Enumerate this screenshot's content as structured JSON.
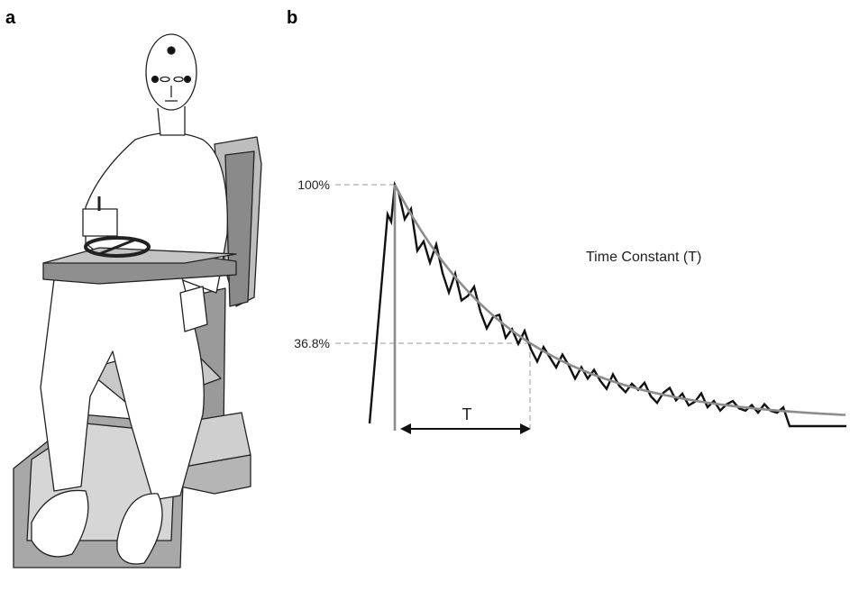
{
  "panels": [
    {
      "label": "a"
    },
    {
      "label": "b",
      "levels": [
        "100%",
        "36.8%"
      ],
      "interval": "T",
      "annotation": "Time Constant (T)"
    }
  ]
}
